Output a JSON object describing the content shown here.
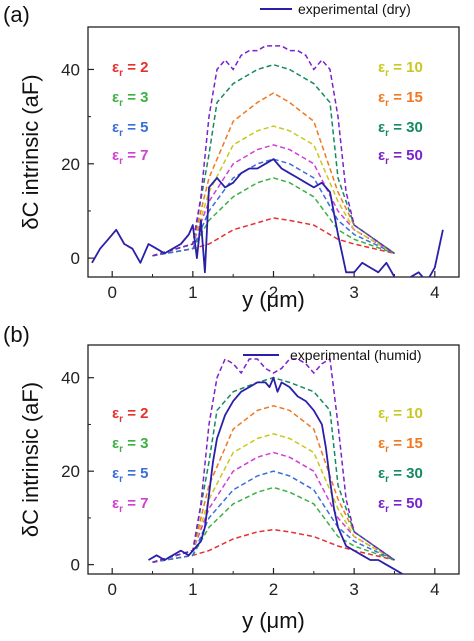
{
  "ylabel": "δC intrinsic (aF)",
  "chart_data": [
    {
      "panel": "(a)",
      "type": "line",
      "xlabel": "y (μm)",
      "ylabel": "δC intrinsic (aF)",
      "xlim": [
        -0.3,
        4.3
      ],
      "ylim": [
        -4,
        49
      ],
      "xticks": [
        0,
        1,
        2,
        3,
        4
      ],
      "yticks": [
        0,
        20,
        40
      ],
      "legend": {
        "position": "top-right",
        "label": "experimental (dry)"
      },
      "experimental": {
        "name": "experimental (dry)",
        "color": "#2a1fa8",
        "x": [
          -0.25,
          -0.15,
          -0.05,
          0.05,
          0.15,
          0.25,
          0.35,
          0.45,
          0.55,
          0.65,
          0.75,
          0.85,
          0.95,
          1.0,
          1.05,
          1.1,
          1.15,
          1.2,
          1.3,
          1.4,
          1.5,
          1.6,
          1.7,
          1.8,
          1.9,
          2.0,
          2.1,
          2.2,
          2.3,
          2.4,
          2.5,
          2.6,
          2.7,
          2.8,
          2.85,
          2.9,
          3.0,
          3.1,
          3.2,
          3.3,
          3.4,
          3.5,
          3.6,
          3.7,
          3.8,
          3.9,
          4.0,
          4.1
        ],
        "y": [
          -1,
          2,
          4,
          6,
          3,
          2,
          -1,
          3,
          2,
          1,
          2,
          3,
          5,
          7,
          0,
          8,
          -3,
          15,
          17,
          15,
          16,
          18,
          19,
          19,
          20,
          21,
          19,
          18,
          17,
          16,
          15,
          16,
          14,
          5,
          1,
          -3,
          -3,
          -1,
          -2,
          -3,
          -1,
          -4,
          -5,
          -4,
          -3,
          -5,
          -2,
          6
        ]
      },
      "series": [
        {
          "name": "εr = 2",
          "eps": "2",
          "color": "#e53030",
          "x": [
            0.5,
            1.0,
            1.2,
            1.5,
            1.8,
            2.0,
            2.2,
            2.5,
            2.8,
            3.0,
            3.5
          ],
          "y": [
            0.5,
            2,
            3,
            6,
            7.5,
            8.5,
            8,
            7,
            4,
            3,
            1
          ]
        },
        {
          "name": "εr = 3",
          "eps": "3",
          "color": "#3cb043",
          "x": [
            0.5,
            1.0,
            1.2,
            1.5,
            1.8,
            2.0,
            2.2,
            2.5,
            2.8,
            3.0,
            3.5
          ],
          "y": [
            0.5,
            2,
            8,
            13,
            16,
            17,
            16,
            13,
            6,
            4,
            1
          ]
        },
        {
          "name": "εr = 5",
          "eps": "5",
          "color": "#3a6fd8",
          "x": [
            0.5,
            1.0,
            1.2,
            1.5,
            1.8,
            2.0,
            2.2,
            2.5,
            2.8,
            3.0,
            3.5
          ],
          "y": [
            0.5,
            2,
            10,
            17,
            20,
            21,
            20,
            17,
            8,
            5,
            1
          ]
        },
        {
          "name": "εr = 7",
          "eps": "7",
          "color": "#d040d0",
          "x": [
            0.5,
            1.0,
            1.2,
            1.5,
            1.8,
            2.0,
            2.2,
            2.5,
            2.8,
            3.0,
            3.5
          ],
          "y": [
            0.5,
            3,
            12,
            20,
            23,
            24,
            23,
            20,
            10,
            6,
            1
          ]
        },
        {
          "name": "εr = 10",
          "eps": "10",
          "color": "#c8c820",
          "x": [
            0.5,
            1.0,
            1.2,
            1.5,
            1.8,
            2.0,
            2.2,
            2.5,
            2.8,
            3.0,
            3.5
          ],
          "y": [
            0.5,
            3,
            14,
            24,
            27,
            28,
            27,
            24,
            12,
            6,
            1
          ]
        },
        {
          "name": "εr = 15",
          "eps": "15",
          "color": "#f07820",
          "x": [
            0.5,
            1.0,
            1.2,
            1.5,
            1.8,
            2.0,
            2.2,
            2.5,
            2.8,
            3.0,
            3.5
          ],
          "y": [
            0.5,
            3,
            17,
            29,
            33,
            35,
            33,
            29,
            14,
            7,
            1
          ]
        },
        {
          "name": "εr = 30",
          "eps": "30",
          "color": "#158a60",
          "x": [
            0.5,
            1.0,
            1.2,
            1.3,
            1.5,
            1.8,
            2.0,
            2.2,
            2.5,
            2.7,
            2.8,
            3.0,
            3.5
          ],
          "y": [
            0.5,
            3,
            22,
            33,
            37,
            40,
            41,
            40,
            37,
            33,
            17,
            7,
            1
          ]
        },
        {
          "name": "εr = 50",
          "eps": "50",
          "color": "#7a22cc",
          "x": [
            0.5,
            1.0,
            1.1,
            1.2,
            1.3,
            1.4,
            1.5,
            1.6,
            1.7,
            1.8,
            1.9,
            2.0,
            2.1,
            2.2,
            2.3,
            2.4,
            2.5,
            2.6,
            2.7,
            2.8,
            2.9,
            3.0,
            3.5
          ],
          "y": [
            0.5,
            3,
            13,
            30,
            40,
            42,
            40,
            43,
            44,
            44,
            45,
            45,
            45,
            44,
            44,
            43,
            40,
            42,
            40,
            30,
            14,
            7,
            1
          ]
        }
      ]
    },
    {
      "panel": "(b)",
      "type": "line",
      "xlabel": "y (μm)",
      "ylabel": "δC intrinsic (aF)",
      "xlim": [
        -0.3,
        4.3
      ],
      "ylim": [
        -2,
        47
      ],
      "xticks": [
        0,
        1,
        2,
        3,
        4
      ],
      "yticks": [
        0,
        20,
        40
      ],
      "legend": {
        "position": "top-right",
        "label": "experimental (humid)"
      },
      "experimental": {
        "name": "experimental (humid)",
        "color": "#2a1fa8",
        "x": [
          0.45,
          0.55,
          0.65,
          0.75,
          0.85,
          0.95,
          1.05,
          1.1,
          1.15,
          1.2,
          1.25,
          1.3,
          1.4,
          1.5,
          1.6,
          1.7,
          1.8,
          1.9,
          1.95,
          2.0,
          2.05,
          2.1,
          2.2,
          2.3,
          2.4,
          2.5,
          2.6,
          2.65,
          2.7,
          2.75,
          2.8,
          2.9,
          3.0,
          3.1,
          3.2,
          3.3,
          3.4,
          3.5,
          3.6
        ],
        "y": [
          1,
          2,
          1,
          2,
          3,
          2,
          4,
          5,
          8,
          15,
          22,
          27,
          32,
          35,
          37,
          38,
          39,
          39,
          38,
          40,
          37,
          39,
          38,
          36,
          35,
          33,
          30,
          25,
          18,
          12,
          8,
          4,
          3,
          2,
          1,
          1,
          0,
          -1,
          -2
        ]
      },
      "series": [
        {
          "name": "εr = 2",
          "eps": "2",
          "color": "#e53030",
          "x": [
            0.5,
            1.0,
            1.2,
            1.5,
            1.8,
            2.0,
            2.2,
            2.5,
            2.8,
            3.0,
            3.5
          ],
          "y": [
            0.5,
            2,
            3,
            5.5,
            7,
            7.5,
            7,
            6,
            4,
            3,
            1
          ]
        },
        {
          "name": "εr = 3",
          "eps": "3",
          "color": "#3cb043",
          "x": [
            0.5,
            1.0,
            1.2,
            1.5,
            1.8,
            2.0,
            2.2,
            2.5,
            2.8,
            3.0,
            3.5
          ],
          "y": [
            0.5,
            2,
            8,
            13,
            15.5,
            16.5,
            15.5,
            13,
            6,
            4,
            1
          ]
        },
        {
          "name": "εr = 5",
          "eps": "5",
          "color": "#3a6fd8",
          "x": [
            0.5,
            1.0,
            1.2,
            1.5,
            1.8,
            2.0,
            2.2,
            2.5,
            2.8,
            3.0,
            3.5
          ],
          "y": [
            0.5,
            2,
            10,
            16,
            19,
            20,
            19,
            16,
            8,
            5,
            1
          ]
        },
        {
          "name": "εr = 7",
          "eps": "7",
          "color": "#d040d0",
          "x": [
            0.5,
            1.0,
            1.2,
            1.5,
            1.8,
            2.0,
            2.2,
            2.5,
            2.8,
            3.0,
            3.5
          ],
          "y": [
            0.5,
            3,
            12,
            20,
            23,
            24,
            23,
            20,
            10,
            6,
            1
          ]
        },
        {
          "name": "εr = 10",
          "eps": "10",
          "color": "#c8c820",
          "x": [
            0.5,
            1.0,
            1.2,
            1.5,
            1.8,
            2.0,
            2.2,
            2.5,
            2.8,
            3.0,
            3.5
          ],
          "y": [
            0.5,
            3,
            14,
            24,
            27,
            28,
            27,
            24,
            12,
            6,
            1
          ]
        },
        {
          "name": "εr = 15",
          "eps": "15",
          "color": "#f07820",
          "x": [
            0.5,
            1.0,
            1.2,
            1.5,
            1.8,
            2.0,
            2.2,
            2.5,
            2.8,
            3.0,
            3.5
          ],
          "y": [
            0.5,
            3,
            17,
            29,
            33,
            34,
            33,
            29,
            14,
            7,
            1
          ]
        },
        {
          "name": "εr = 30",
          "eps": "30",
          "color": "#158a60",
          "x": [
            0.5,
            1.0,
            1.2,
            1.3,
            1.5,
            1.8,
            2.0,
            2.2,
            2.5,
            2.7,
            2.8,
            3.0,
            3.5
          ],
          "y": [
            0.5,
            3,
            22,
            33,
            37,
            39,
            40,
            39,
            37,
            33,
            17,
            7,
            1
          ]
        },
        {
          "name": "εr = 50",
          "eps": "50",
          "color": "#7a22cc",
          "x": [
            0.5,
            1.0,
            1.1,
            1.2,
            1.3,
            1.4,
            1.5,
            1.6,
            1.7,
            1.8,
            1.9,
            2.0,
            2.1,
            2.2,
            2.3,
            2.4,
            2.5,
            2.6,
            2.7,
            2.8,
            2.9,
            3.0,
            3.5
          ],
          "y": [
            0.5,
            3,
            13,
            30,
            40,
            44,
            43,
            41,
            44,
            44,
            42,
            41,
            42,
            44,
            44,
            43,
            41,
            43,
            44,
            30,
            14,
            7,
            1
          ]
        }
      ]
    }
  ]
}
